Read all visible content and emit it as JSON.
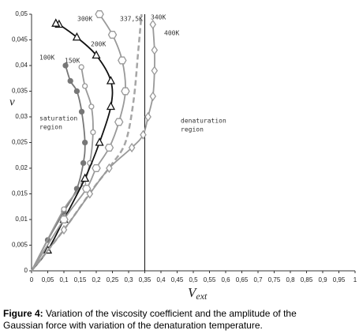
{
  "chart_data": {
    "type": "line",
    "x_label": "V",
    "x_label_sub": "ext",
    "y_label": "ν",
    "xlim": [
      0,
      1
    ],
    "ylim": [
      0,
      0.05
    ],
    "xticks": [
      0,
      {
        "value": 0.05,
        "label": "0,05"
      },
      {
        "value": 0.1,
        "label": "0,1"
      },
      {
        "value": 0.15,
        "label": "0,15"
      },
      {
        "value": 0.2,
        "label": "0,2"
      },
      {
        "value": 0.25,
        "label": "0,25"
      },
      {
        "value": 0.3,
        "label": "0,3"
      },
      {
        "value": 0.35,
        "label": "0,35"
      },
      {
        "value": 0.4,
        "label": "0,4"
      },
      {
        "value": 0.45,
        "label": "0,45"
      },
      {
        "value": 0.5,
        "label": "0,5"
      },
      {
        "value": 0.55,
        "label": "0,55"
      },
      {
        "value": 0.6,
        "label": "0,6"
      },
      {
        "value": 0.65,
        "label": "0,65"
      },
      {
        "value": 0.7,
        "label": "0,7"
      },
      {
        "value": 0.75,
        "label": "0,75"
      },
      {
        "value": 0.8,
        "label": "0,8"
      },
      {
        "value": 0.85,
        "label": "0,85"
      },
      {
        "value": 0.9,
        "label": "0,9"
      },
      {
        "value": 0.95,
        "label": "0,95"
      },
      1
    ],
    "yticks": [
      0,
      {
        "value": 0.005,
        "label": "0,005"
      },
      {
        "value": 0.01,
        "label": "0,01"
      },
      {
        "value": 0.015,
        "label": "0,015"
      },
      {
        "value": 0.02,
        "label": "0,02"
      },
      {
        "value": 0.025,
        "label": "0,025"
      },
      {
        "value": 0.03,
        "label": "0,03"
      },
      {
        "value": 0.035,
        "label": "0,035"
      },
      {
        "value": 0.04,
        "label": "0,04"
      },
      {
        "value": 0.045,
        "label": "0,045"
      },
      {
        "value": 0.05,
        "label": "0,05"
      }
    ],
    "series": [
      {
        "name": "100K",
        "color": "#777777",
        "marker": "filled-circle",
        "x": [
          0,
          0.05,
          0.1,
          0.14,
          0.16,
          0.165,
          0.155,
          0.14,
          0.12,
          0.105
        ],
        "values": [
          0,
          0.006,
          0.0115,
          0.016,
          0.021,
          0.025,
          0.031,
          0.035,
          0.037,
          0.04
        ]
      },
      {
        "name": "150K",
        "color": "#999999",
        "marker": "small-circle",
        "x": [
          0,
          0.1,
          0.16,
          0.18,
          0.19,
          0.185,
          0.165,
          0.154
        ],
        "values": [
          0,
          0.012,
          0.017,
          0.021,
          0.027,
          0.032,
          0.036,
          0.0397
        ]
      },
      {
        "name": "200K",
        "color": "#111111",
        "marker": "triangle",
        "x": [
          0,
          0.05,
          0.1,
          0.165,
          0.21,
          0.245,
          0.245,
          0.2,
          0.14,
          0.085,
          0.075
        ],
        "values": [
          0,
          0.004,
          0.01,
          0.018,
          0.025,
          0.032,
          0.037,
          0.042,
          0.0455,
          0.048,
          0.0482
        ]
      },
      {
        "name": "300K",
        "color": "#999999",
        "marker": "hexagon",
        "x": [
          0,
          0.1,
          0.17,
          0.2,
          0.24,
          0.27,
          0.29,
          0.28,
          0.25,
          0.21
        ],
        "values": [
          0,
          0.01,
          0.016,
          0.02,
          0.024,
          0.029,
          0.035,
          0.041,
          0.046,
          0.05
        ]
      },
      {
        "name": "337,5K",
        "color": "#a6a6a6",
        "marker": "dashed",
        "x": [
          0,
          0.1,
          0.19,
          0.245,
          0.29,
          0.315,
          0.33,
          0.34
        ],
        "values": [
          0,
          0.008,
          0.016,
          0.0205,
          0.025,
          0.033,
          0.043,
          0.05
        ]
      },
      {
        "name": "340K",
        "color": "#111111",
        "marker": "none",
        "x": [
          0.35,
          0.35
        ],
        "values": [
          0,
          0.05
        ]
      },
      {
        "name": "400K",
        "color": "#999999",
        "marker": "diamond",
        "x": [
          0,
          0.1,
          0.18,
          0.24,
          0.31,
          0.345,
          0.36,
          0.375,
          0.38,
          0.38,
          0.375
        ],
        "values": [
          0,
          0.008,
          0.015,
          0.02,
          0.024,
          0.0265,
          0.03,
          0.034,
          0.039,
          0.043,
          0.048
        ]
      }
    ],
    "annotations": [
      [
        "saturation",
        "region"
      ],
      [
        "denaturation",
        "region"
      ]
    ],
    "caption_label": "Figure 4:",
    "caption": [
      "Variation of the viscosity coefficient and the amplitude of the",
      "Gaussian force with variation of the denaturation temperature."
    ]
  }
}
